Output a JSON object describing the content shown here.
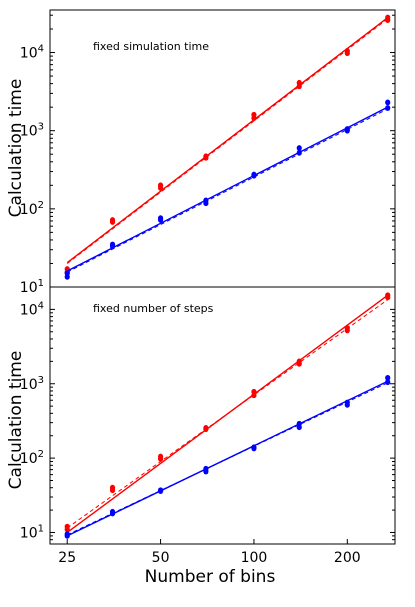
{
  "figure": {
    "xlabel": "Number of bins",
    "colors": {
      "red": "#ff0000",
      "blue": "#0000ff",
      "axes": "#000000",
      "background": "#ffffff"
    }
  },
  "chart_data": [
    {
      "type": "scatter",
      "annotation": "fixed simulation time",
      "ylabel": "Calculation time",
      "xscale": "log",
      "yscale": "log",
      "xlim": [
        22,
        285
      ],
      "ylim": [
        10,
        35000
      ],
      "yticks": [
        {
          "value": 10,
          "base": "10",
          "exp": "1"
        },
        {
          "value": 100,
          "base": "10",
          "exp": "2"
        },
        {
          "value": 1000,
          "base": "10",
          "exp": "3"
        },
        {
          "value": 10000,
          "base": "10",
          "exp": "4"
        }
      ],
      "grid": false,
      "series": [
        {
          "color": "#ff0000",
          "points": [
            [
              25,
              15.5
            ],
            [
              25,
              17
            ],
            [
              35,
              68
            ],
            [
              35,
              72
            ],
            [
              50,
              185
            ],
            [
              50,
              200
            ],
            [
              70,
              450
            ],
            [
              70,
              470
            ],
            [
              100,
              1450
            ],
            [
              100,
              1600
            ],
            [
              140,
              3700
            ],
            [
              140,
              4100
            ],
            [
              200,
              9800
            ],
            [
              200,
              10500
            ],
            [
              270,
              26000
            ],
            [
              270,
              28000
            ]
          ],
          "fit_solid": [
            [
              25,
              20.5
            ],
            [
              270,
              28000
            ]
          ],
          "fit_dashed": [
            [
              25,
              20
            ],
            [
              270,
              27000
            ]
          ]
        },
        {
          "color": "#0000ff",
          "points": [
            [
              25,
              13.5
            ],
            [
              25,
              15
            ],
            [
              35,
              33
            ],
            [
              35,
              35
            ],
            [
              50,
              72
            ],
            [
              50,
              76
            ],
            [
              70,
              118
            ],
            [
              70,
              128
            ],
            [
              100,
              265
            ],
            [
              100,
              275
            ],
            [
              140,
              520
            ],
            [
              140,
              600
            ],
            [
              200,
              1000
            ],
            [
              200,
              1050
            ],
            [
              270,
              1950
            ],
            [
              270,
              2300
            ]
          ],
          "fit_solid": [
            [
              25,
              16
            ],
            [
              270,
              2000
            ]
          ],
          "fit_dashed": [
            [
              25,
              15.5
            ],
            [
              270,
              1900
            ]
          ]
        }
      ]
    },
    {
      "type": "scatter",
      "annotation": "fixed number of steps",
      "ylabel": "Calculation time",
      "xscale": "log",
      "yscale": "log",
      "xlim": [
        22,
        285
      ],
      "ylim": [
        7,
        20000
      ],
      "xticks": [
        25,
        50,
        100,
        200
      ],
      "yticks": [
        {
          "value": 10,
          "base": "10",
          "exp": "1"
        },
        {
          "value": 100,
          "base": "10",
          "exp": "2"
        },
        {
          "value": 1000,
          "base": "10",
          "exp": "3"
        },
        {
          "value": 10000,
          "base": "10",
          "exp": "4"
        }
      ],
      "grid": false,
      "series": [
        {
          "color": "#ff0000",
          "points": [
            [
              25,
              11
            ],
            [
              25,
              12
            ],
            [
              35,
              37
            ],
            [
              35,
              40
            ],
            [
              50,
              98
            ],
            [
              50,
              105
            ],
            [
              70,
              245
            ],
            [
              70,
              255
            ],
            [
              100,
              700
            ],
            [
              100,
              780
            ],
            [
              140,
              1850
            ],
            [
              140,
              2000
            ],
            [
              200,
              5200
            ],
            [
              200,
              5600
            ],
            [
              270,
              14500
            ],
            [
              270,
              15500
            ]
          ],
          "fit_solid": [
            [
              25,
              10
            ],
            [
              270,
              15500
            ]
          ],
          "fit_dashed": [
            [
              25,
              11.5
            ],
            [
              270,
              13500
            ]
          ]
        },
        {
          "color": "#0000ff",
          "points": [
            [
              25,
              9
            ],
            [
              25,
              9.5
            ],
            [
              35,
              18
            ],
            [
              35,
              19
            ],
            [
              50,
              36
            ],
            [
              50,
              37
            ],
            [
              70,
              66
            ],
            [
              70,
              72
            ],
            [
              100,
              135
            ],
            [
              100,
              140
            ],
            [
              140,
              260
            ],
            [
              140,
              290
            ],
            [
              200,
              520
            ],
            [
              200,
              560
            ],
            [
              270,
              1050
            ],
            [
              270,
              1200
            ]
          ],
          "fit_solid": [
            [
              25,
              9
            ],
            [
              270,
              1080
            ]
          ],
          "fit_dashed": [
            [
              25,
              9.3
            ],
            [
              270,
              1030
            ]
          ]
        }
      ]
    }
  ]
}
